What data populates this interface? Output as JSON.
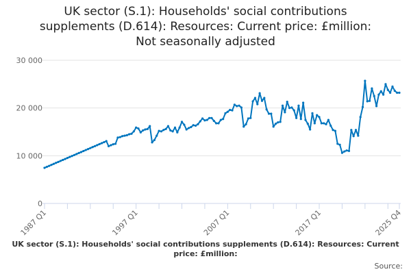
{
  "title_lines": [
    "UK sector (S.1): Households' social contributions",
    "supplements (D.614): Resources: Current price: £million:",
    "Not seasonally adjusted"
  ],
  "footer_title": "UK sector (S.1): Households' social contributions supplements (D.614): Resources: Current price: £million:",
  "source_label": "Source:",
  "chart_data": {
    "type": "line",
    "title": "UK sector (S.1): Households' social contributions supplements (D.614): Resources: Current price: £million: Not seasonally adjusted",
    "xlabel": "",
    "ylabel": "",
    "x_start": "1987 Q1",
    "x_end": "2025 Q4",
    "frequency": "quarterly",
    "x_tick_labels": [
      {
        "index": 0,
        "label": "1987 Q1"
      },
      {
        "index": 40,
        "label": "1997 Q1"
      },
      {
        "index": 80,
        "label": "2007 Q1"
      },
      {
        "index": 120,
        "label": "2017 Q1"
      },
      {
        "index": 155,
        "label": "2025 Q4"
      }
    ],
    "y_ticks": [
      {
        "value": 0,
        "label": "0"
      },
      {
        "value": 10000,
        "label": "10 000"
      },
      {
        "value": 20000,
        "label": "20 000"
      },
      {
        "value": 30000,
        "label": "30 000"
      }
    ],
    "ylim": [
      0,
      30000
    ],
    "grid": true,
    "line_color": "#0075be",
    "values": [
      7460,
      7670,
      7870,
      8080,
      8290,
      8500,
      8700,
      8910,
      9120,
      9320,
      9530,
      9740,
      9940,
      10150,
      10360,
      10570,
      10770,
      10980,
      11190,
      11390,
      11600,
      11810,
      12010,
      12220,
      12430,
      12640,
      12840,
      13060,
      12000,
      12200,
      12400,
      12500,
      13800,
      13900,
      14100,
      14200,
      14300,
      14500,
      14600,
      15100,
      15900,
      15700,
      14900,
      15300,
      15500,
      15600,
      16200,
      12800,
      13300,
      14200,
      15200,
      15100,
      15400,
      15600,
      16200,
      15300,
      15100,
      15900,
      14900,
      15900,
      17100,
      16500,
      15500,
      15800,
      16000,
      16400,
      16300,
      16600,
      17200,
      17800,
      17400,
      17500,
      17900,
      17900,
      17300,
      16800,
      16800,
      17500,
      17700,
      18900,
      19200,
      19600,
      19500,
      20700,
      20400,
      20500,
      20100,
      16100,
      16600,
      17800,
      17900,
      21400,
      22100,
      20800,
      23100,
      21500,
      22100,
      19700,
      18800,
      18800,
      16100,
      16700,
      17000,
      17100,
      20500,
      19100,
      21300,
      20000,
      20100,
      19500,
      17900,
      20500,
      17700,
      21100,
      17500,
      16700,
      15500,
      18900,
      16800,
      18500,
      18100,
      16800,
      16800,
      16600,
      17500,
      16300,
      15400,
      15200,
      12500,
      12300,
      10600,
      10900,
      11100,
      11000,
      15400,
      14100,
      15400,
      14200,
      18100,
      20200,
      25700,
      21400,
      21500,
      24100,
      22500,
      20400,
      22800,
      23500,
      22800,
      25000,
      23800,
      23200,
      24500,
      23600,
      23200,
      23200
    ]
  }
}
